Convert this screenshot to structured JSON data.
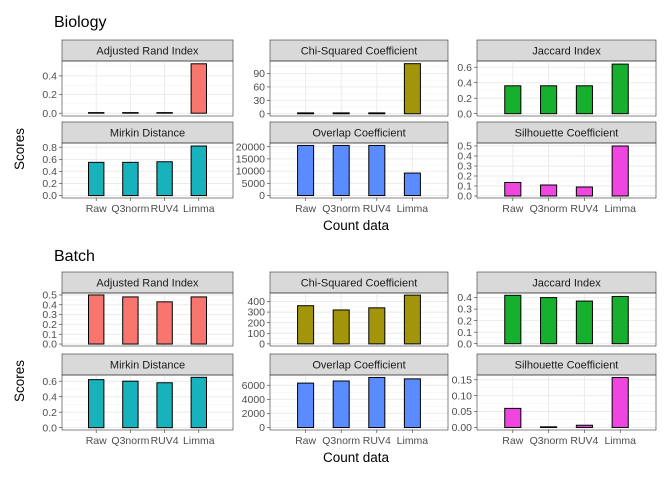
{
  "colors": {
    "Adjusted Rand Index": "#F8766D",
    "Chi-Squared Coefficient": "#A3950A",
    "Jaccard Index": "#17B02E",
    "Mirkin Distance": "#17B2BB",
    "Overlap Coefficient": "#5A8CFF",
    "Silhouette Coefficient": "#F046E0"
  },
  "chart_data": [
    {
      "type": "bar",
      "title": "Biology",
      "xlabel": "Count data",
      "ylabel": "Scores",
      "categories": [
        "Raw",
        "Q3norm",
        "RUV4",
        "Limma"
      ],
      "panels": [
        {
          "name": "Adjusted Rand Index",
          "values": [
            0.005,
            0.005,
            0.005,
            0.53
          ],
          "ylim": [
            -0.03,
            0.56
          ],
          "ticks": [
            0.0,
            0.2,
            0.4
          ],
          "tick_labels": [
            "0.0",
            "0.2",
            "0.4"
          ]
        },
        {
          "name": "Chi-Squared Coefficient",
          "values": [
            2,
            2,
            2,
            112
          ],
          "ylim": [
            -5,
            118
          ],
          "ticks": [
            0,
            30,
            60,
            90
          ],
          "tick_labels": [
            "0",
            "30",
            "60",
            "90"
          ]
        },
        {
          "name": "Jaccard Index",
          "values": [
            0.36,
            0.36,
            0.36,
            0.64
          ],
          "ylim": [
            -0.03,
            0.68
          ],
          "ticks": [
            0.0,
            0.2,
            0.4,
            0.6
          ],
          "tick_labels": [
            "0.0",
            "0.2",
            "0.4",
            "0.6"
          ]
        },
        {
          "name": "Mirkin Distance",
          "values": [
            0.55,
            0.55,
            0.56,
            0.82
          ],
          "ylim": [
            -0.04,
            0.87
          ],
          "ticks": [
            0.0,
            0.2,
            0.4,
            0.6,
            0.8
          ],
          "tick_labels": [
            "0.0",
            "0.2",
            "0.4",
            "0.6",
            "0.8"
          ]
        },
        {
          "name": "Overlap Coefficient",
          "values": [
            20500,
            20500,
            20500,
            9200
          ],
          "ylim": [
            -1000,
            21500
          ],
          "ticks": [
            0,
            5000,
            10000,
            15000,
            20000
          ],
          "tick_labels": [
            "0",
            "5000",
            "10000",
            "15000",
            "20000"
          ]
        },
        {
          "name": "Silhouette Coefficient",
          "values": [
            0.135,
            0.11,
            0.09,
            0.5
          ],
          "ylim": [
            -0.02,
            0.53
          ],
          "ticks": [
            0.0,
            0.1,
            0.2,
            0.3,
            0.4,
            0.5
          ],
          "tick_labels": [
            "0.0",
            "0.1",
            "0.2",
            "0.3",
            "0.4",
            "0.5"
          ]
        }
      ]
    },
    {
      "type": "bar",
      "title": "Batch",
      "xlabel": "Count data",
      "ylabel": "Scores",
      "categories": [
        "Raw",
        "Q3norm",
        "RUV4",
        "Limma"
      ],
      "panels": [
        {
          "name": "Adjusted Rand Index",
          "values": [
            0.5,
            0.48,
            0.43,
            0.48
          ],
          "ylim": [
            -0.02,
            0.52
          ],
          "ticks": [
            0.0,
            0.1,
            0.2,
            0.3,
            0.4,
            0.5
          ],
          "tick_labels": [
            "0.0",
            "0.1",
            "0.2",
            "0.3",
            "0.4",
            "0.5"
          ]
        },
        {
          "name": "Chi-Squared Coefficient",
          "values": [
            360,
            320,
            340,
            460
          ],
          "ylim": [
            -20,
            480
          ],
          "ticks": [
            0,
            100,
            200,
            300,
            400
          ],
          "tick_labels": [
            "0",
            "100",
            "200",
            "300",
            "400"
          ]
        },
        {
          "name": "Jaccard Index",
          "values": [
            0.42,
            0.4,
            0.37,
            0.41
          ],
          "ylim": [
            -0.02,
            0.44
          ],
          "ticks": [
            0.0,
            0.1,
            0.2,
            0.3,
            0.4
          ],
          "tick_labels": [
            "0.0",
            "0.1",
            "0.2",
            "0.3",
            "0.4"
          ]
        },
        {
          "name": "Mirkin Distance",
          "values": [
            0.62,
            0.6,
            0.58,
            0.65
          ],
          "ylim": [
            -0.03,
            0.68
          ],
          "ticks": [
            0.0,
            0.2,
            0.4,
            0.6
          ],
          "tick_labels": [
            "0.0",
            "0.2",
            "0.4",
            "0.6"
          ]
        },
        {
          "name": "Overlap Coefficient",
          "values": [
            6300,
            6600,
            7100,
            6900
          ],
          "ylim": [
            -350,
            7450
          ],
          "ticks": [
            0,
            2000,
            4000,
            6000
          ],
          "tick_labels": [
            "0",
            "2000",
            "4000",
            "6000"
          ]
        },
        {
          "name": "Silhouette Coefficient",
          "values": [
            0.06,
            0.002,
            0.007,
            0.157
          ],
          "ylim": [
            -0.008,
            0.165
          ],
          "ticks": [
            0.0,
            0.05,
            0.1,
            0.15
          ],
          "tick_labels": [
            "0.00",
            "0.05",
            "0.10",
            "0.15"
          ]
        }
      ]
    }
  ]
}
